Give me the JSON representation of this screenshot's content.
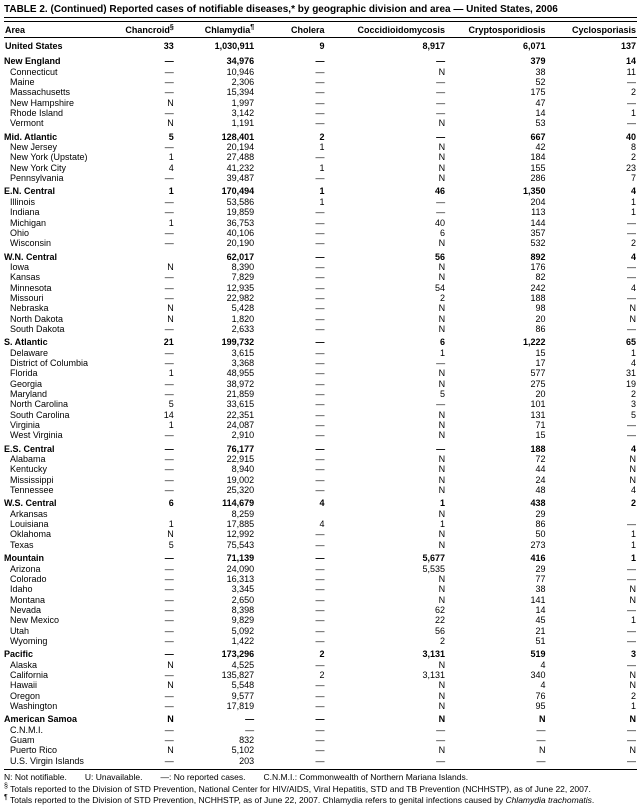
{
  "title": "TABLE 2. (Continued) Reported cases of notifiable diseases,* by geographic division and area — United States, 2006",
  "headers": [
    "Area",
    "Chancroid§",
    "Chlamydia¶",
    "Cholera",
    "Coccidioidomycosis",
    "Cryptosporidiosis",
    "Cyclosporiasis"
  ],
  "col_widths": [
    "100px",
    "70px",
    "80px",
    "70px",
    "120px",
    "100px",
    "90px"
  ],
  "sections": [
    {
      "type": "total",
      "row": [
        "United States",
        "33",
        "1,030,911",
        "9",
        "8,917",
        "6,071",
        "137"
      ]
    },
    {
      "type": "section",
      "row": [
        "New England",
        "—",
        "34,976",
        "—",
        "—",
        "379",
        "14"
      ],
      "subs": [
        [
          "Connecticut",
          "—",
          "10,946",
          "—",
          "N",
          "38",
          "11"
        ],
        [
          "Maine",
          "—",
          "2,306",
          "—",
          "—",
          "52",
          "—"
        ],
        [
          "Massachusetts",
          "—",
          "15,394",
          "—",
          "—",
          "175",
          "2"
        ],
        [
          "New Hampshire",
          "N",
          "1,997",
          "—",
          "—",
          "47",
          "—"
        ],
        [
          "Rhode Island",
          "—",
          "3,142",
          "—",
          "—",
          "14",
          "1"
        ],
        [
          "Vermont",
          "N",
          "1,191",
          "—",
          "N",
          "53",
          "—"
        ]
      ]
    },
    {
      "type": "section",
      "row": [
        "Mid. Atlantic",
        "5",
        "128,401",
        "2",
        "—",
        "667",
        "40"
      ],
      "subs": [
        [
          "New Jersey",
          "—",
          "20,194",
          "1",
          "N",
          "42",
          "8"
        ],
        [
          "New York (Upstate)",
          "1",
          "27,488",
          "—",
          "N",
          "184",
          "2"
        ],
        [
          "New York City",
          "4",
          "41,232",
          "1",
          "N",
          "155",
          "23"
        ],
        [
          "Pennsylvania",
          "—",
          "39,487",
          "—",
          "N",
          "286",
          "7"
        ]
      ]
    },
    {
      "type": "section",
      "row": [
        "E.N. Central",
        "1",
        "170,494",
        "1",
        "46",
        "1,350",
        "4"
      ],
      "subs": [
        [
          "Illinois",
          "—",
          "53,586",
          "1",
          "—",
          "204",
          "1"
        ],
        [
          "Indiana",
          "—",
          "19,859",
          "—",
          "—",
          "113",
          "1"
        ],
        [
          "Michigan",
          "1",
          "36,753",
          "—",
          "40",
          "144",
          "—"
        ],
        [
          "Ohio",
          "—",
          "40,106",
          "—",
          "6",
          "357",
          "—"
        ],
        [
          "Wisconsin",
          "—",
          "20,190",
          "—",
          "N",
          "532",
          "2"
        ]
      ]
    },
    {
      "type": "section",
      "row": [
        "W.N. Central",
        "",
        "62,017",
        "—",
        "56",
        "892",
        "4"
      ],
      "subs": [
        [
          "Iowa",
          "N",
          "8,390",
          "—",
          "N",
          "176",
          "—"
        ],
        [
          "Kansas",
          "—",
          "7,829",
          "—",
          "N",
          "82",
          "—"
        ],
        [
          "Minnesota",
          "—",
          "12,935",
          "—",
          "54",
          "242",
          "4"
        ],
        [
          "Missouri",
          "—",
          "22,982",
          "—",
          "2",
          "188",
          "—"
        ],
        [
          "Nebraska",
          "N",
          "5,428",
          "—",
          "N",
          "98",
          "N"
        ],
        [
          "North Dakota",
          "N",
          "1,820",
          "—",
          "N",
          "20",
          "N"
        ],
        [
          "South Dakota",
          "—",
          "2,633",
          "—",
          "N",
          "86",
          "—"
        ]
      ]
    },
    {
      "type": "section",
      "row": [
        "S. Atlantic",
        "21",
        "199,732",
        "—",
        "6",
        "1,222",
        "65"
      ],
      "subs": [
        [
          "Delaware",
          "—",
          "3,615",
          "—",
          "1",
          "15",
          "1"
        ],
        [
          "District of Columbia",
          "—",
          "3,368",
          "—",
          "—",
          "17",
          "4"
        ],
        [
          "Florida",
          "1",
          "48,955",
          "—",
          "N",
          "577",
          "31"
        ],
        [
          "Georgia",
          "—",
          "38,972",
          "—",
          "N",
          "275",
          "19"
        ],
        [
          "Maryland",
          "—",
          "21,859",
          "—",
          "5",
          "20",
          "2"
        ],
        [
          "North Carolina",
          "5",
          "33,615",
          "—",
          "—",
          "101",
          "3"
        ],
        [
          "South Carolina",
          "14",
          "22,351",
          "—",
          "N",
          "131",
          "5"
        ],
        [
          "Virginia",
          "1",
          "24,087",
          "—",
          "N",
          "71",
          "—"
        ],
        [
          "West Virginia",
          "—",
          "2,910",
          "—",
          "N",
          "15",
          "—"
        ]
      ]
    },
    {
      "type": "section",
      "row": [
        "E.S. Central",
        "—",
        "76,177",
        "—",
        "—",
        "188",
        "4"
      ],
      "subs": [
        [
          "Alabama",
          "—",
          "22,915",
          "—",
          "N",
          "72",
          "N"
        ],
        [
          "Kentucky",
          "—",
          "8,940",
          "—",
          "N",
          "44",
          "N"
        ],
        [
          "Mississippi",
          "—",
          "19,002",
          "—",
          "N",
          "24",
          "N"
        ],
        [
          "Tennessee",
          "—",
          "25,320",
          "—",
          "N",
          "48",
          "4"
        ]
      ]
    },
    {
      "type": "section",
      "row": [
        "W.S. Central",
        "6",
        "114,679",
        "4",
        "1",
        "438",
        "2"
      ],
      "subs": [
        [
          "Arkansas",
          "",
          "8,259",
          "",
          "N",
          "29",
          ""
        ],
        [
          "Louisiana",
          "1",
          "17,885",
          "4",
          "1",
          "86",
          "—"
        ],
        [
          "Oklahoma",
          "N",
          "12,992",
          "—",
          "N",
          "50",
          "1"
        ],
        [
          "Texas",
          "5",
          "75,543",
          "—",
          "N",
          "273",
          "1"
        ]
      ]
    },
    {
      "type": "section",
      "row": [
        "Mountain",
        "—",
        "71,139",
        "—",
        "5,677",
        "416",
        "1"
      ],
      "subs": [
        [
          "Arizona",
          "—",
          "24,090",
          "—",
          "5,535",
          "29",
          "—"
        ],
        [
          "Colorado",
          "—",
          "16,313",
          "—",
          "N",
          "77",
          "—"
        ],
        [
          "Idaho",
          "—",
          "3,345",
          "—",
          "N",
          "38",
          "N"
        ],
        [
          "Montana",
          "—",
          "2,650",
          "—",
          "N",
          "141",
          "N"
        ],
        [
          "Nevada",
          "—",
          "8,398",
          "—",
          "62",
          "14",
          "—"
        ],
        [
          "New Mexico",
          "—",
          "9,829",
          "—",
          "22",
          "45",
          "1"
        ],
        [
          "Utah",
          "—",
          "5,092",
          "—",
          "56",
          "21",
          "—"
        ],
        [
          "Wyoming",
          "—",
          "1,422",
          "—",
          "2",
          "51",
          "—"
        ]
      ]
    },
    {
      "type": "section",
      "row": [
        "Pacific",
        "—",
        "173,296",
        "2",
        "3,131",
        "519",
        "3"
      ],
      "subs": [
        [
          "Alaska",
          "N",
          "4,525",
          "—",
          "N",
          "4",
          "—"
        ],
        [
          "California",
          "—",
          "135,827",
          "2",
          "3,131",
          "340",
          "N"
        ],
        [
          "Hawaii",
          "N",
          "5,548",
          "—",
          "N",
          "4",
          "N"
        ],
        [
          "Oregon",
          "—",
          "9,577",
          "—",
          "N",
          "76",
          "2"
        ],
        [
          "Washington",
          "—",
          "17,819",
          "—",
          "N",
          "95",
          "1"
        ]
      ]
    },
    {
      "type": "section",
      "row": [
        "American Samoa",
        "N",
        "—",
        "—",
        "N",
        "N",
        "N"
      ],
      "subs": [
        [
          "C.N.M.I.",
          "—",
          "—",
          "—",
          "—",
          "—",
          "—"
        ],
        [
          "Guam",
          "—",
          "832",
          "—",
          "—",
          "—",
          "—"
        ],
        [
          "Puerto Rico",
          "N",
          "5,102",
          "—",
          "N",
          "N",
          "N"
        ],
        [
          "U.S. Virgin Islands",
          "—",
          "203",
          "—",
          "—",
          "—",
          "—"
        ]
      ]
    }
  ],
  "legend": [
    "N: Not notifiable.",
    "U: Unavailable.",
    "—: No reported cases.",
    "C.N.M.I.: Commonwealth of Northern Mariana Islands."
  ],
  "footnotes": [
    "§ Totals reported to the Division of STD Prevention, National Center for HIV/AIDS, Viral Hepatitis, STD and TB Prevention (NCHHSTP), as of June 22, 2007.",
    "¶ Totals reported to the Division of STD Prevention, NCHHSTP, as of June 22, 2007. Chlamydia refers to genital infections caused by Chlamydia trachomatis."
  ],
  "style": {
    "font_family": "Arial, Helvetica, sans-serif",
    "body_fontsize": 9,
    "title_fontsize": 10,
    "notes_fontsize": 8.5,
    "border_color": "#000000",
    "background_color": "#ffffff",
    "text_color": "#000000"
  }
}
